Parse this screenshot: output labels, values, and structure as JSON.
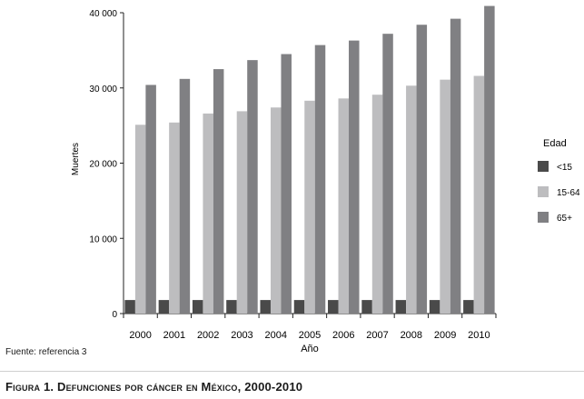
{
  "chart_data": {
    "type": "bar",
    "xlabel": "Año",
    "ylabel": "Muertes",
    "ylim": [
      0,
      40000
    ],
    "yticks": [
      0,
      10000,
      20000,
      30000,
      40000
    ],
    "ytick_labels": [
      "0",
      "10 000",
      "20 000",
      "30 000",
      "40 000"
    ],
    "categories": [
      "2000",
      "2001",
      "2002",
      "2003",
      "2004",
      "2005",
      "2006",
      "2007",
      "2008",
      "2009",
      "2010"
    ],
    "legend_title": "Edad",
    "legend_position": "right",
    "grid": false,
    "series": [
      {
        "name": "<15",
        "color": "#4a4a4a",
        "values": [
          1800,
          1800,
          1800,
          1800,
          1800,
          1800,
          1800,
          1800,
          1800,
          1800,
          1800
        ]
      },
      {
        "name": "15-64",
        "color": "#bdbdbf",
        "values": [
          25100,
          25400,
          26600,
          26900,
          27400,
          28300,
          28600,
          29100,
          30300,
          31100,
          31600
        ]
      },
      {
        "name": "65+",
        "color": "#808083",
        "values": [
          30400,
          31200,
          32500,
          33700,
          34500,
          35700,
          36300,
          37200,
          38400,
          39200,
          40900
        ]
      }
    ]
  },
  "source": "Fuente: referencia 3",
  "caption": "Figura 1. Defunciones por cáncer en México, 2000-2010"
}
